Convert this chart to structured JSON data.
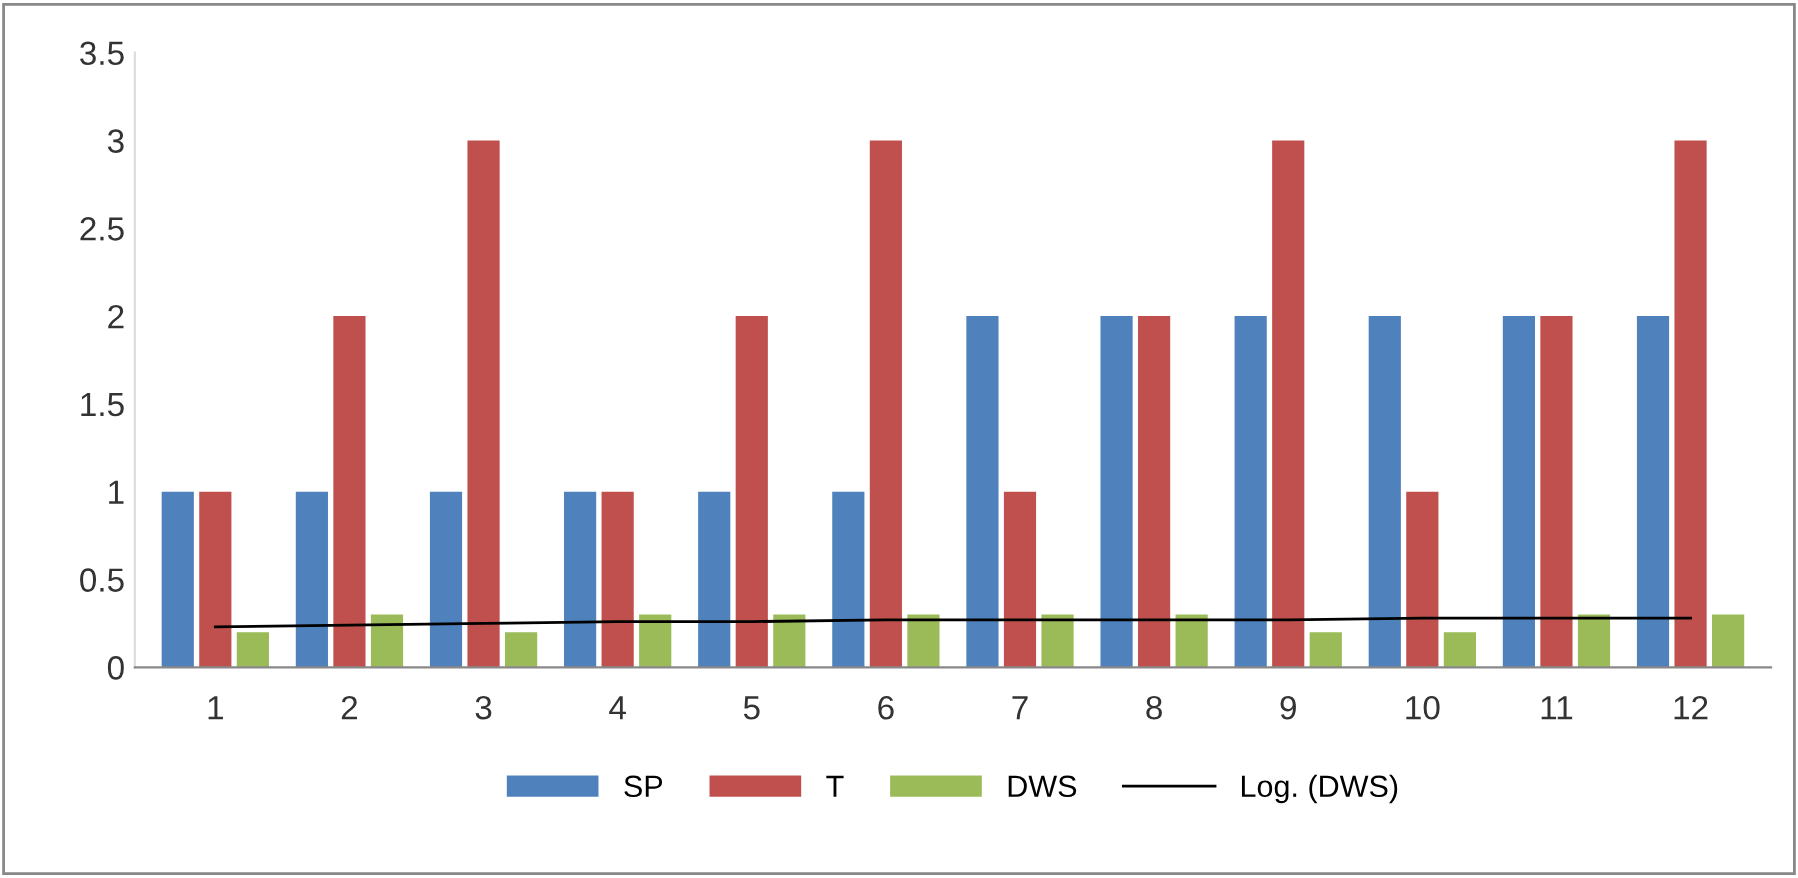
{
  "chart_data": {
    "type": "bar",
    "categories": [
      "1",
      "2",
      "3",
      "4",
      "5",
      "6",
      "7",
      "8",
      "9",
      "10",
      "11",
      "12"
    ],
    "series": [
      {
        "name": "SP",
        "color": "#4f81bd",
        "values": [
          1,
          1,
          1,
          1,
          1,
          1,
          2,
          2,
          2,
          2,
          2,
          2
        ]
      },
      {
        "name": "T",
        "color": "#c0504d",
        "values": [
          1,
          2,
          3,
          1,
          2,
          3,
          1,
          2,
          3,
          1,
          2,
          3
        ]
      },
      {
        "name": "DWS",
        "color": "#9bbb59",
        "values": [
          0.2,
          0.3,
          0.2,
          0.3,
          0.3,
          0.3,
          0.3,
          0.3,
          0.2,
          0.2,
          0.3,
          0.3
        ]
      },
      {
        "name": "Log. (DWS)",
        "type": "line",
        "color": "#000000",
        "values": [
          0.23,
          0.24,
          0.25,
          0.26,
          0.26,
          0.27,
          0.27,
          0.27,
          0.27,
          0.28,
          0.28,
          0.28
        ]
      }
    ],
    "ylim": [
      0,
      3.5
    ],
    "yticks": [
      0,
      0.5,
      1,
      1.5,
      2,
      2.5,
      3,
      3.5
    ],
    "grid": false,
    "legend": "bottom"
  }
}
